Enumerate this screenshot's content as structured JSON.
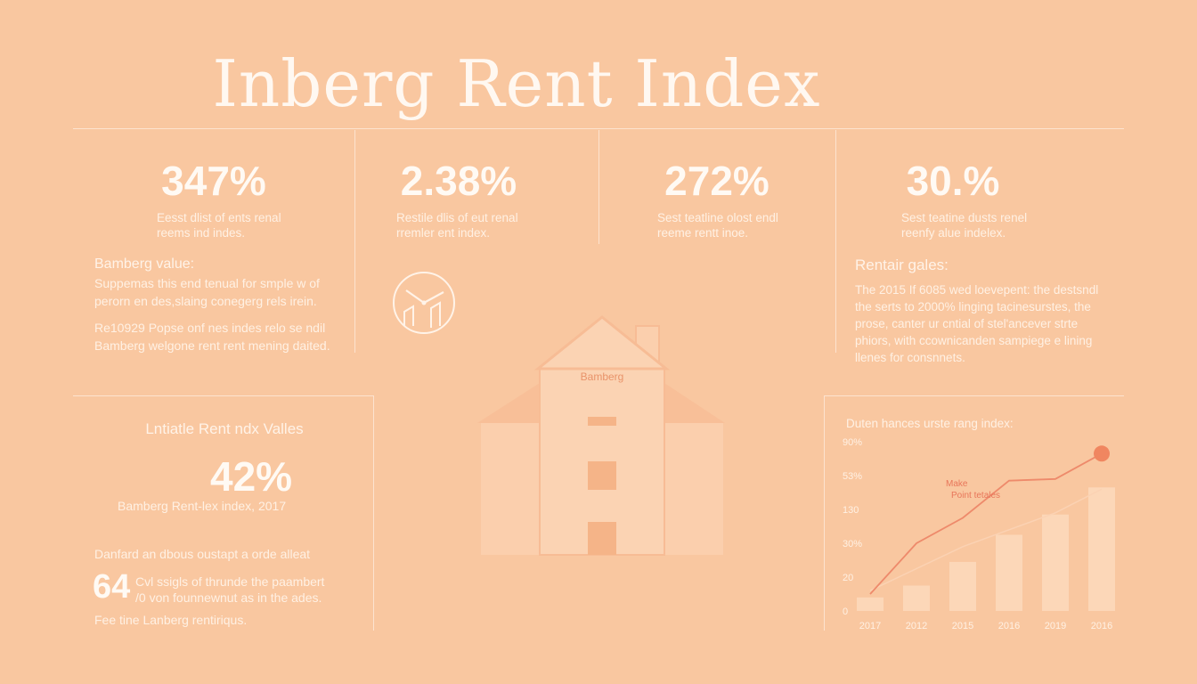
{
  "title": "Inberg Rent Index",
  "stats": [
    {
      "value": "347%",
      "desc_line1": "Eesst dlist of ents renal",
      "desc_line2": "reems ind indes."
    },
    {
      "value": "2.38%",
      "desc_line1": "Restile dlis of eut renal",
      "desc_line2": "rremler ent index."
    },
    {
      "value": "272%",
      "desc_line1": "Sest teatline olost endl",
      "desc_line2": "reeme rentt inoe."
    },
    {
      "value": "30.%",
      "desc_line1": "Sest teatine dusts renel",
      "desc_line2": "reenfy alue indelex."
    }
  ],
  "left_block": {
    "heading": "Bamberg value:",
    "line1": "Suppemas this end tenual for smple w of",
    "line2": "perorn en des,slaing conegerg rels irein.",
    "line3": "Re10929 Popse onf nes indes relo se ndil",
    "line4": "Bamberg welgone rent rent mening daited."
  },
  "right_block": {
    "heading": "Rentair gales:",
    "line1": "The 2015 If 6085 wed loevepent: the destsndl",
    "line2": "the serts to 2000% linging tacinesurstes, the",
    "line3": "prose, canter ur cntial of stel'ancever strte",
    "line4": "phiors, with ccownicanden sampiege e lining",
    "line5": "llenes for consnnets."
  },
  "house_label": "Bamberg",
  "bottom_left": {
    "heading": "Lntiatle Rent ndx Valles",
    "value": "42%",
    "caption": "Bamberg Rent-lex index, 2017",
    "line1": "Danfard an dbous oustapt a orde alleat",
    "big_number": "64",
    "big_suffix": "/0",
    "line2": "Cvl ssigls of thrunde the paambert",
    "line3": "von founnewnut as in the ades.",
    "footer": "Fee tine Lanberg rentiriqus."
  },
  "chart_data": {
    "type": "bar",
    "title": "Duten hances urste rang index:",
    "y_tick_labels": [
      "90%",
      "53%",
      "130",
      "30%",
      "20",
      "0"
    ],
    "categories": [
      "2017",
      "2012",
      "2015",
      "2016",
      "2019",
      "2016"
    ],
    "values": [
      8,
      15,
      29,
      45,
      57,
      73
    ],
    "ylim": [
      0,
      100
    ],
    "line_series": [
      10,
      40,
      55,
      77,
      78,
      93
    ],
    "trend_series": [
      12,
      25,
      38,
      48,
      58,
      72
    ],
    "annotation_line1": "Make",
    "annotation_line2": "Point tetales",
    "colors": {
      "bar": "#fcd7b8",
      "line": "#ee8a6b",
      "marker": "#f08660",
      "axis_text": "#fff1e4"
    }
  }
}
